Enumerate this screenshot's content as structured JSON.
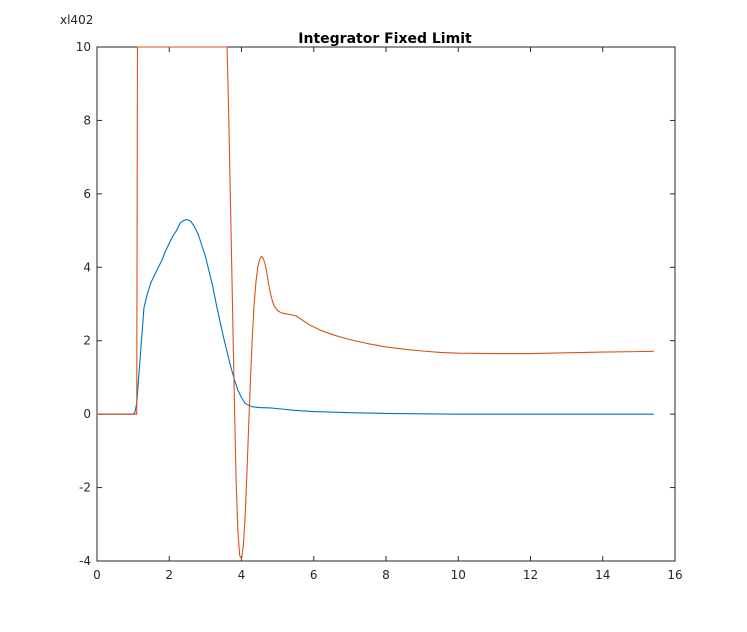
{
  "window_label": "xl402",
  "chart_data": {
    "type": "line",
    "title": "Integrator Fixed Limit",
    "xlabel": "",
    "ylabel": "",
    "xlim": [
      0,
      16
    ],
    "ylim": [
      -4,
      10
    ],
    "xticks": [
      0,
      2,
      4,
      6,
      8,
      10,
      12,
      14,
      16
    ],
    "yticks": [
      -4,
      -2,
      0,
      2,
      4,
      6,
      8,
      10
    ],
    "xtick_labels": [
      "0",
      "2",
      "4",
      "6",
      "8",
      "10",
      "12",
      "14",
      "16"
    ],
    "ytick_labels": [
      "-4",
      "-2",
      "0",
      "2",
      "4",
      "6",
      "8",
      "10"
    ],
    "grid": false,
    "series": [
      {
        "color": "#0072BD",
        "x": [
          0,
          1.0,
          1.05,
          1.1,
          1.2,
          1.3,
          1.4,
          1.5,
          1.6,
          1.7,
          1.8,
          1.9,
          2.0,
          2.1,
          2.2,
          2.3,
          2.4,
          2.5,
          2.6,
          2.7,
          2.8,
          2.9,
          3.0,
          3.1,
          3.2,
          3.3,
          3.4,
          3.5,
          3.6,
          3.7,
          3.8,
          3.9,
          4.0,
          4.1,
          4.2,
          4.3,
          4.5,
          4.8,
          5.0,
          5.5,
          6.0,
          7.0,
          8.0,
          10.0,
          12.0,
          14.0,
          15.4
        ],
        "y": [
          0,
          0,
          0.05,
          0.3,
          1.6,
          2.9,
          3.3,
          3.6,
          3.8,
          4.0,
          4.2,
          4.45,
          4.65,
          4.85,
          5.0,
          5.2,
          5.28,
          5.3,
          5.25,
          5.1,
          4.9,
          4.6,
          4.3,
          3.9,
          3.5,
          3.0,
          2.55,
          2.1,
          1.7,
          1.3,
          0.95,
          0.65,
          0.45,
          0.3,
          0.24,
          0.2,
          0.18,
          0.17,
          0.15,
          0.1,
          0.07,
          0.04,
          0.02,
          0.0,
          0.0,
          0.0,
          0.0
        ]
      },
      {
        "color": "#D95319",
        "x": [
          0,
          1.0,
          1.1,
          1.12,
          1.2,
          2.0,
          3.0,
          3.6,
          3.65,
          3.7,
          3.75,
          3.8,
          3.85,
          3.9,
          3.95,
          4.0,
          4.05,
          4.1,
          4.15,
          4.2,
          4.25,
          4.3,
          4.35,
          4.4,
          4.45,
          4.5,
          4.55,
          4.6,
          4.65,
          4.7,
          4.75,
          4.8,
          4.85,
          4.9,
          5.0,
          5.1,
          5.2,
          5.3,
          5.5,
          5.7,
          5.9,
          6.2,
          6.6,
          7.0,
          7.5,
          8.0,
          8.5,
          9.0,
          9.5,
          10.0,
          11.0,
          12.0,
          13.0,
          14.0,
          15.4
        ],
        "y": [
          0,
          0,
          0,
          10,
          10,
          10,
          10,
          10,
          8.0,
          5.5,
          3.0,
          0.5,
          -1.8,
          -3.2,
          -3.85,
          -3.95,
          -3.6,
          -2.8,
          -1.6,
          -0.3,
          1.0,
          2.1,
          3.0,
          3.6,
          4.0,
          4.2,
          4.3,
          4.25,
          4.1,
          3.85,
          3.55,
          3.3,
          3.1,
          2.95,
          2.82,
          2.76,
          2.74,
          2.72,
          2.68,
          2.55,
          2.42,
          2.28,
          2.14,
          2.03,
          1.92,
          1.83,
          1.77,
          1.72,
          1.68,
          1.66,
          1.65,
          1.65,
          1.67,
          1.69,
          1.71
        ]
      }
    ]
  }
}
